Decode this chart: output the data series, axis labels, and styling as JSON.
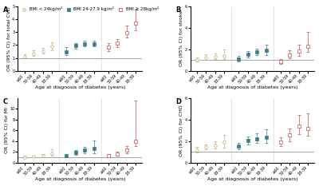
{
  "panels": [
    {
      "label": "A",
      "ylabel": "OR (95% CI) for total CVD",
      "ylim": [
        0,
        5
      ],
      "yticks": [
        0,
        1,
        2,
        3,
        4,
        5
      ],
      "groups": [
        {
          "color": "#c8a96e",
          "marker": "o",
          "fillstyle": "none",
          "x_positions": [
            0,
            0.7,
            1.4,
            2.1
          ],
          "y": [
            1.1,
            1.35,
            1.55,
            1.9
          ],
          "yerr_low": [
            0.15,
            0.18,
            0.2,
            0.28
          ],
          "yerr_high": [
            0.18,
            0.22,
            0.22,
            0.32
          ]
        },
        {
          "color": "#3a7d8c",
          "marker": "s",
          "fillstyle": "full",
          "x_positions": [
            3.2,
            3.9,
            4.6,
            5.3
          ],
          "y": [
            1.5,
            1.95,
            2.1,
            2.1
          ],
          "yerr_low": [
            0.28,
            0.22,
            0.22,
            0.22
          ],
          "yerr_high": [
            0.32,
            0.22,
            0.22,
            0.22
          ]
        },
        {
          "color": "#c0534a",
          "marker": "s",
          "fillstyle": "none",
          "x_positions": [
            6.4,
            7.1,
            7.8,
            8.5
          ],
          "y": [
            1.85,
            2.15,
            2.95,
            3.7
          ],
          "yerr_low": [
            0.32,
            0.28,
            0.38,
            0.55
          ],
          "yerr_high": [
            0.32,
            0.32,
            0.52,
            1.05
          ]
        }
      ],
      "hline": 1.0
    },
    {
      "label": "B",
      "ylabel": "OR (95% CI) for stroke",
      "ylim": [
        0,
        6
      ],
      "yticks": [
        0,
        2,
        4,
        6
      ],
      "groups": [
        {
          "color": "#c8a96e",
          "marker": "o",
          "fillstyle": "none",
          "x_positions": [
            0,
            0.7,
            1.4,
            2.1
          ],
          "y": [
            1.05,
            1.25,
            1.35,
            1.4
          ],
          "yerr_low": [
            0.18,
            0.22,
            0.22,
            0.32
          ],
          "yerr_high": [
            0.22,
            0.28,
            0.28,
            0.55
          ]
        },
        {
          "color": "#3a7d8c",
          "marker": "s",
          "fillstyle": "full",
          "x_positions": [
            3.2,
            3.9,
            4.6,
            5.3
          ],
          "y": [
            1.1,
            1.55,
            1.75,
            1.9
          ],
          "yerr_low": [
            0.22,
            0.28,
            0.28,
            0.42
          ],
          "yerr_high": [
            0.28,
            0.32,
            0.32,
            0.55
          ]
        },
        {
          "color": "#c0534a",
          "marker": "s",
          "fillstyle": "none",
          "x_positions": [
            6.4,
            7.1,
            7.8,
            8.5
          ],
          "y": [
            0.85,
            1.5,
            1.85,
            2.25
          ],
          "yerr_low": [
            0.22,
            0.32,
            0.42,
            0.45
          ],
          "yerr_high": [
            0.28,
            0.42,
            0.55,
            1.35
          ]
        }
      ],
      "hline": 1.0
    },
    {
      "label": "C",
      "ylabel": "OR (95% CI) for MI",
      "ylim": [
        0,
        12
      ],
      "yticks": [
        0,
        2,
        4,
        6,
        8,
        10
      ],
      "groups": [
        {
          "color": "#c8a96e",
          "marker": "o",
          "fillstyle": "none",
          "x_positions": [
            0,
            0.7,
            1.4,
            2.1
          ],
          "y": [
            1.05,
            1.15,
            1.3,
            1.8
          ],
          "yerr_low": [
            0.18,
            0.18,
            0.22,
            0.45
          ],
          "yerr_high": [
            0.22,
            0.22,
            0.32,
            0.65
          ]
        },
        {
          "color": "#3a7d8c",
          "marker": "s",
          "fillstyle": "full",
          "x_positions": [
            3.2,
            3.9,
            4.6,
            5.3
          ],
          "y": [
            1.3,
            1.9,
            2.3,
            2.7
          ],
          "yerr_low": [
            0.32,
            0.42,
            0.52,
            0.85
          ],
          "yerr_high": [
            0.38,
            0.52,
            0.65,
            1.4
          ]
        },
        {
          "color": "#c0534a",
          "marker": "s",
          "fillstyle": "none",
          "x_positions": [
            6.4,
            7.1,
            7.8,
            8.5
          ],
          "y": [
            1.3,
            1.65,
            2.35,
            4.0
          ],
          "yerr_low": [
            0.28,
            0.38,
            0.52,
            0.85
          ],
          "yerr_high": [
            0.32,
            0.48,
            0.72,
            7.5
          ]
        }
      ],
      "hline": 1.0
    },
    {
      "label": "D",
      "ylabel": "OR (95% CI) for CHD",
      "ylim": [
        0,
        6
      ],
      "yticks": [
        0,
        2,
        4,
        6
      ],
      "groups": [
        {
          "color": "#c8a96e",
          "marker": "o",
          "fillstyle": "none",
          "x_positions": [
            0,
            0.7,
            1.4,
            2.1
          ],
          "y": [
            1.2,
            1.45,
            1.6,
            1.9
          ],
          "yerr_low": [
            0.22,
            0.22,
            0.28,
            0.5
          ],
          "yerr_high": [
            0.28,
            0.28,
            0.38,
            0.7
          ]
        },
        {
          "color": "#3a7d8c",
          "marker": "s",
          "fillstyle": "full",
          "x_positions": [
            3.2,
            3.9,
            4.6,
            5.3
          ],
          "y": [
            1.55,
            2.05,
            2.25,
            2.4
          ],
          "yerr_low": [
            0.28,
            0.32,
            0.38,
            0.52
          ],
          "yerr_high": [
            0.32,
            0.42,
            0.48,
            0.72
          ]
        },
        {
          "color": "#c0534a",
          "marker": "s",
          "fillstyle": "none",
          "x_positions": [
            6.4,
            7.1,
            7.8,
            8.5
          ],
          "y": [
            1.9,
            2.55,
            3.4,
            3.15
          ],
          "yerr_low": [
            0.38,
            0.52,
            0.72,
            0.65
          ],
          "yerr_high": [
            0.48,
            0.65,
            1.05,
            1.4
          ]
        }
      ],
      "hline": 1.0
    }
  ],
  "legend_labels": [
    "BMI < 24kg/m²",
    "BMI 24-27.9 kg/m²",
    "BMI ≥ 28kg/m²"
  ],
  "legend_colors": [
    "#c8a96e",
    "#3a7d8c",
    "#c0534a"
  ],
  "legend_markers": [
    "o",
    "s",
    "s"
  ],
  "legend_fillstyles": [
    "none",
    "full",
    "none"
  ],
  "xlabel": "Age at diagnosis of diabetes (years)",
  "x_tick_positions": [
    0,
    0.7,
    1.4,
    2.1,
    3.2,
    3.9,
    4.6,
    5.3,
    6.4,
    7.1,
    7.8,
    8.5
  ],
  "x_tick_labels": [
    "≥60",
    "50-59",
    "40-49",
    "18-39",
    "≥60",
    "50-59",
    "40-49",
    "18-39",
    "≥60",
    "50-59",
    "40-49",
    "18-39"
  ],
  "xlim": [
    -0.5,
    9.0
  ],
  "background_color": "#ffffff",
  "panel_label_fontsize": 6,
  "axis_label_fontsize": 4.5,
  "tick_fontsize": 3.5,
  "legend_fontsize": 4,
  "marker_size": 2.5,
  "capsize": 1.2,
  "elinewidth": 0.5,
  "ecolor_alpha": 0.8
}
